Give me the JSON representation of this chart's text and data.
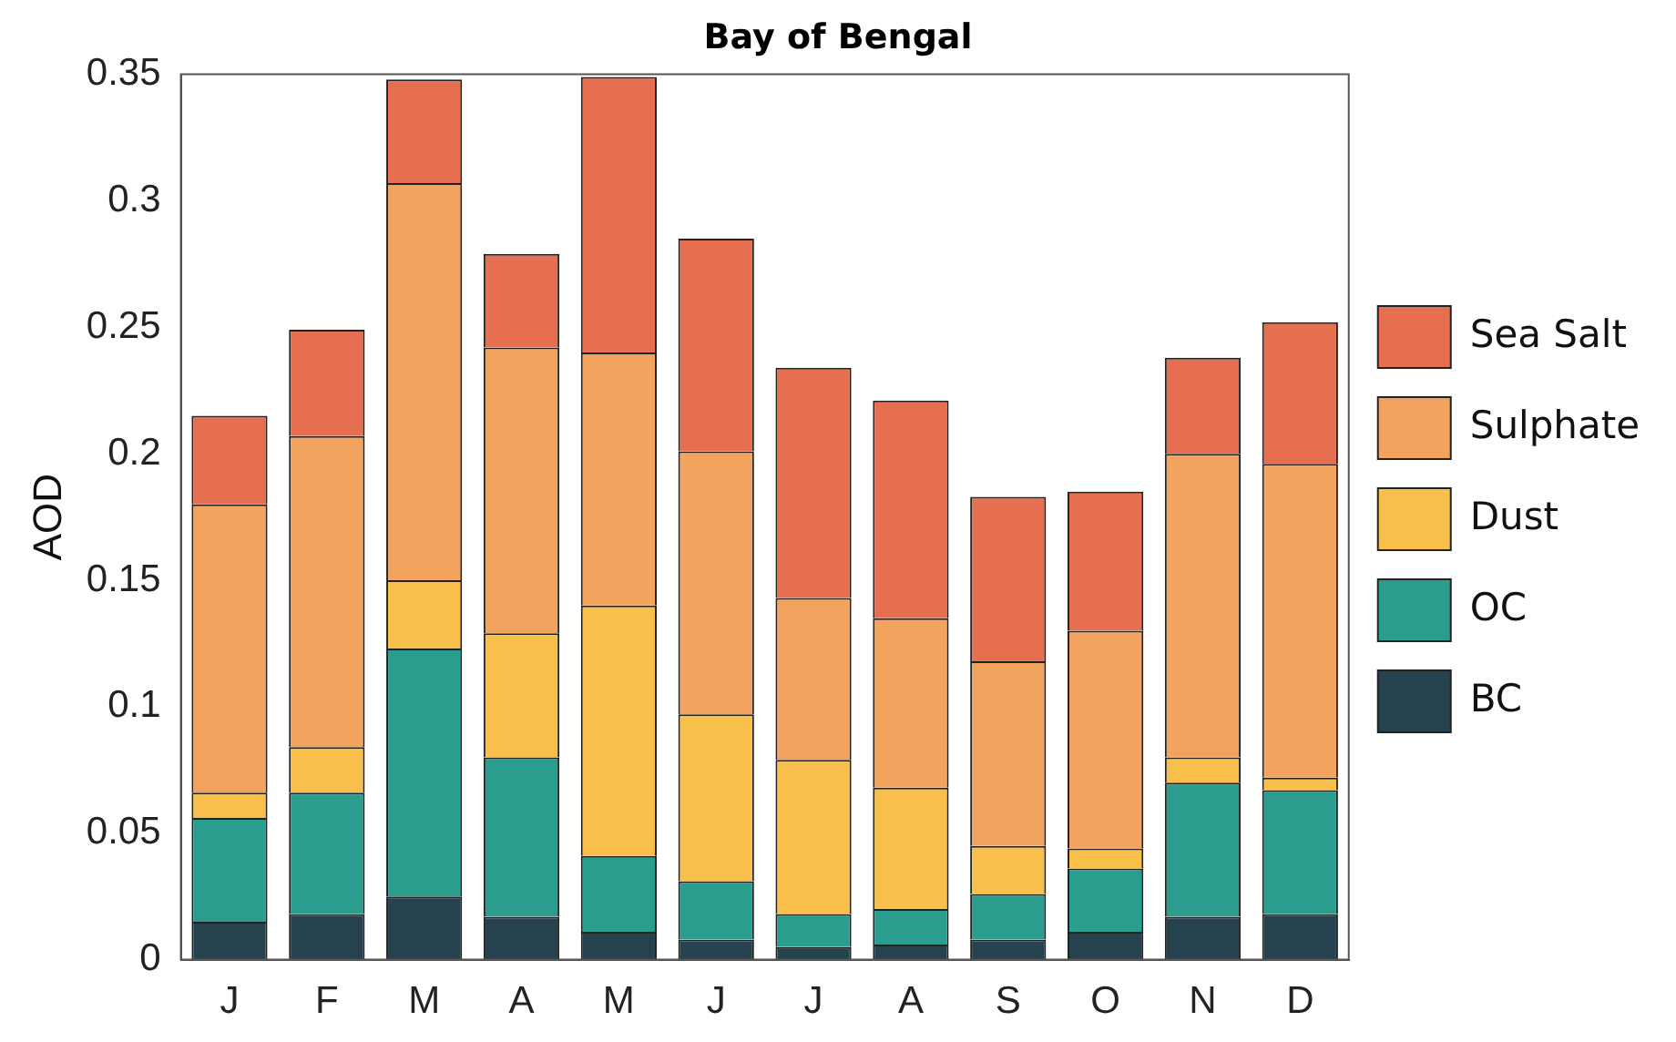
{
  "chart_data": {
    "type": "bar",
    "title": "Bay of Bengal",
    "ylabel": "AOD",
    "stacked": true,
    "categories": [
      "J",
      "F",
      "M",
      "A",
      "M",
      "J",
      "J",
      "A",
      "S",
      "O",
      "N",
      "D"
    ],
    "series": [
      {
        "name": "BC",
        "color": "#27424f",
        "values": [
          0.015,
          0.018,
          0.025,
          0.017,
          0.011,
          0.008,
          0.005,
          0.006,
          0.008,
          0.011,
          0.017,
          0.018
        ]
      },
      {
        "name": "OC",
        "color": "#2a9d8f",
        "values": [
          0.041,
          0.048,
          0.098,
          0.063,
          0.03,
          0.023,
          0.013,
          0.014,
          0.018,
          0.025,
          0.053,
          0.049
        ]
      },
      {
        "name": "Dust",
        "color": "#f9bf4b",
        "values": [
          0.01,
          0.018,
          0.027,
          0.049,
          0.099,
          0.066,
          0.061,
          0.048,
          0.019,
          0.008,
          0.01,
          0.005
        ]
      },
      {
        "name": "Sulphate",
        "color": "#f2a35e",
        "values": [
          0.114,
          0.123,
          0.157,
          0.113,
          0.1,
          0.104,
          0.064,
          0.067,
          0.073,
          0.086,
          0.12,
          0.124
        ]
      },
      {
        "name": "Sea Salt",
        "color": "#e76f51",
        "values": [
          0.035,
          0.042,
          0.041,
          0.037,
          0.109,
          0.084,
          0.091,
          0.086,
          0.065,
          0.055,
          0.038,
          0.056
        ]
      }
    ],
    "ylim": [
      0,
      0.35
    ],
    "yticks": [
      0,
      0.05,
      0.1,
      0.15,
      0.2,
      0.25,
      0.3,
      0.35
    ],
    "grid": false,
    "legend": "right"
  }
}
